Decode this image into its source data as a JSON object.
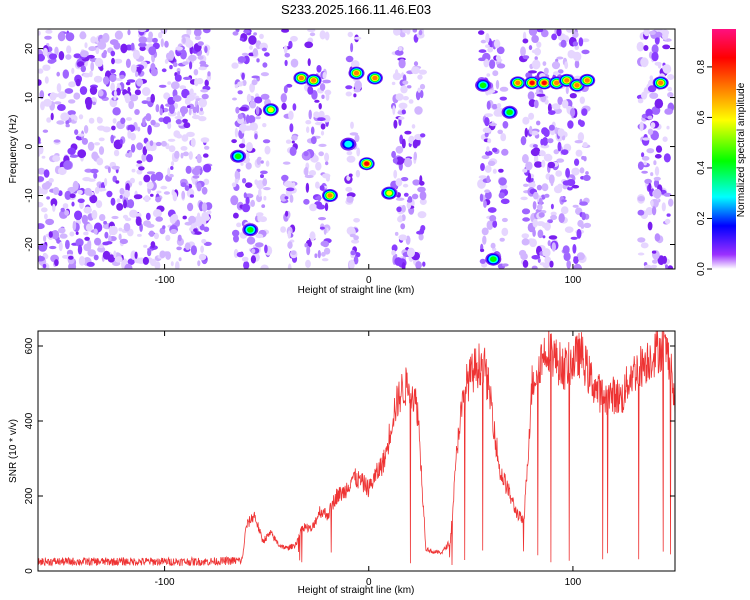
{
  "figure": {
    "title": "S233.2025.166.11.46.E03"
  },
  "chart_data": [
    {
      "type": "heatmap",
      "xlabel": "Height of straight line (km)",
      "ylabel": "Frequency (Hz)",
      "xlim": [
        -162,
        150
      ],
      "ylim": [
        -25,
        24
      ],
      "xticks": [
        -100,
        0,
        100
      ],
      "yticks": [
        -20,
        -10,
        0,
        10,
        20
      ],
      "colorbar": {
        "label": "Normalized spectral amplitude",
        "range": [
          0,
          0.95
        ],
        "ticks": [
          0.0,
          0.2,
          0.4,
          0.6,
          0.8
        ],
        "colormap": [
          "#ffffff",
          "#8000ff",
          "#0000ff",
          "#00ffff",
          "#00ff00",
          "#ffff00",
          "#ff8000",
          "#ff0000",
          "#ff00ff"
        ]
      },
      "noise_columns_km": [
        -162,
        -78,
        -66,
        -49,
        -42,
        -36,
        -31,
        -20,
        -10,
        -5,
        12,
        27,
        55,
        67,
        75,
        107,
        133,
        148
      ],
      "peaks": [
        {
          "x": -64,
          "y": -2,
          "a": 0.45
        },
        {
          "x": -58,
          "y": -17,
          "a": 0.55
        },
        {
          "x": -48,
          "y": 7.5,
          "a": 0.7
        },
        {
          "x": -33,
          "y": 14,
          "a": 0.8
        },
        {
          "x": -27,
          "y": 13.5,
          "a": 0.75
        },
        {
          "x": -19,
          "y": -10,
          "a": 0.85
        },
        {
          "x": -10,
          "y": 0.5,
          "a": 0.4
        },
        {
          "x": -6,
          "y": 15,
          "a": 0.85
        },
        {
          "x": -1,
          "y": -3.5,
          "a": 0.9
        },
        {
          "x": 3,
          "y": 14,
          "a": 0.8
        },
        {
          "x": 10,
          "y": -9.5,
          "a": 0.7
        },
        {
          "x": 56,
          "y": 12.5,
          "a": 0.6
        },
        {
          "x": 61,
          "y": -23,
          "a": 0.55
        },
        {
          "x": 69,
          "y": 7,
          "a": 0.45
        },
        {
          "x": 73,
          "y": 13,
          "a": 0.85
        },
        {
          "x": 80,
          "y": 13,
          "a": 0.9
        },
        {
          "x": 86,
          "y": 13,
          "a": 0.9
        },
        {
          "x": 92,
          "y": 13,
          "a": 0.85
        },
        {
          "x": 97,
          "y": 13.5,
          "a": 0.85
        },
        {
          "x": 102,
          "y": 12.5,
          "a": 0.8
        },
        {
          "x": 107,
          "y": 13.5,
          "a": 0.75
        },
        {
          "x": 143,
          "y": 13,
          "a": 0.85
        }
      ]
    },
    {
      "type": "line",
      "xlabel": "Height of straight line (km)",
      "ylabel": "SNR (10 * v/v)",
      "xlim": [
        -162,
        150
      ],
      "ylim": [
        0,
        640
      ],
      "xticks": [
        -100,
        0,
        100
      ],
      "yticks": [
        0,
        200,
        400,
        600
      ],
      "color": "#ee3333",
      "series": [
        {
          "x": [
            -162,
            -120,
            -80,
            -62,
            -60,
            -56,
            -52,
            -48,
            -44,
            -40,
            -36,
            -32,
            -28,
            -24,
            -20,
            -16,
            -12,
            -8,
            -4,
            0,
            4,
            8,
            12,
            16,
            20,
            24,
            28,
            32,
            36,
            40,
            44,
            48,
            52,
            56,
            60,
            64,
            68,
            72,
            76,
            80,
            84,
            88,
            92,
            96,
            100,
            104,
            108,
            112,
            116,
            120,
            124,
            128,
            132,
            136,
            140,
            144,
            148,
            150
          ],
          "values": [
            25,
            25,
            25,
            28,
            120,
            150,
            80,
            100,
            70,
            60,
            70,
            120,
            110,
            160,
            150,
            200,
            210,
            250,
            240,
            220,
            260,
            300,
            420,
            480,
            500,
            430,
            60,
            50,
            50,
            80,
            380,
            500,
            540,
            560,
            450,
            270,
            220,
            160,
            130,
            500,
            560,
            600,
            560,
            540,
            560,
            580,
            520,
            480,
            460,
            470,
            460,
            520,
            540,
            560,
            580,
            600,
            560,
            420
          ]
        }
      ]
    }
  ]
}
